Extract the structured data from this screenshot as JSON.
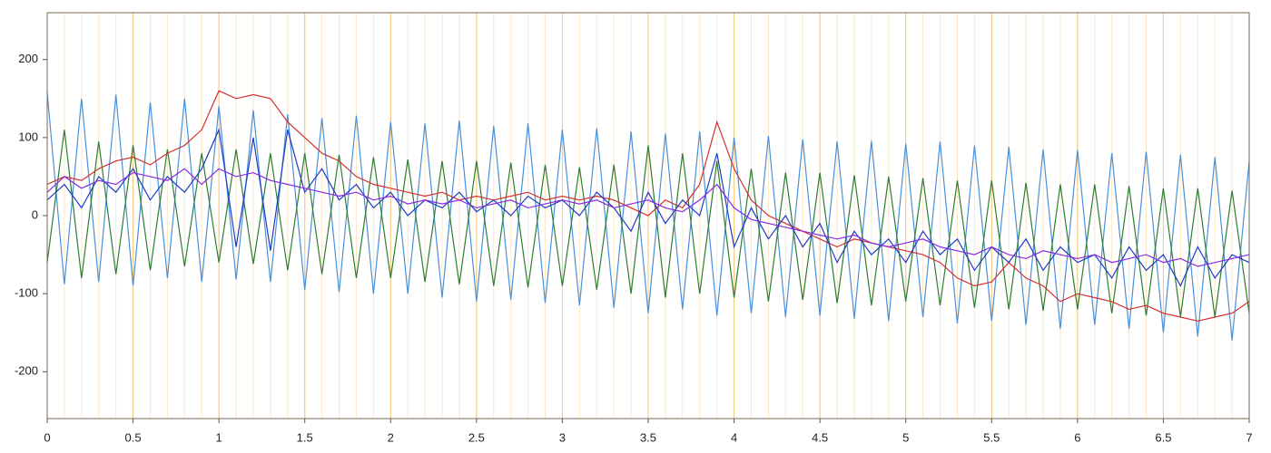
{
  "chart_data": {
    "type": "line",
    "xlim": [
      0,
      7
    ],
    "xticks": [
      0,
      0.5,
      1,
      1.5,
      2,
      2.5,
      3,
      3.5,
      4,
      4.5,
      5,
      5.5,
      6,
      6.5,
      7
    ],
    "ylim": [
      -260,
      260
    ],
    "yticks": [
      -200,
      -100,
      0,
      100,
      200
    ],
    "grid": true,
    "grid_color": "#f5c77a",
    "minor_grid_color": "#fbe8c8",
    "x": [
      0,
      0.1,
      0.2,
      0.3,
      0.4,
      0.5,
      0.6,
      0.7,
      0.8,
      0.9,
      1,
      1.1,
      1.2,
      1.3,
      1.4,
      1.5,
      1.6,
      1.7,
      1.8,
      1.9,
      2,
      2.1,
      2.2,
      2.3,
      2.4,
      2.5,
      2.6,
      2.7,
      2.8,
      2.9,
      3,
      3.1,
      3.2,
      3.3,
      3.4,
      3.5,
      3.6,
      3.7,
      3.8,
      3.9,
      4,
      4.1,
      4.2,
      4.3,
      4.4,
      4.5,
      4.6,
      4.7,
      4.8,
      4.9,
      5,
      5.1,
      5.2,
      5.3,
      5.4,
      5.5,
      5.6,
      5.7,
      5.8,
      5.9,
      6,
      6.1,
      6.2,
      6.3,
      6.4,
      6.5,
      6.6,
      6.7,
      6.8,
      6.9,
      7
    ],
    "series": [
      {
        "color": "#4a90d9",
        "values": [
          158,
          -88,
          150,
          -85,
          155,
          -90,
          145,
          -80,
          150,
          -85,
          140,
          -82,
          135,
          -85,
          130,
          -95,
          125,
          -98,
          128,
          -100,
          120,
          -100,
          118,
          -105,
          122,
          -110,
          115,
          -108,
          118,
          -112,
          110,
          -115,
          112,
          -118,
          108,
          -125,
          105,
          -120,
          108,
          -128,
          100,
          -125,
          102,
          -130,
          98,
          -128,
          95,
          -132,
          96,
          -135,
          92,
          -130,
          95,
          -138,
          90,
          -135,
          88,
          -140,
          85,
          -145,
          84,
          -140,
          80,
          -145,
          82,
          -150,
          78,
          -155,
          75,
          -160,
          70
        ]
      },
      {
        "color": "#2e7d32",
        "values": [
          -60,
          110,
          -80,
          95,
          -75,
          90,
          -70,
          85,
          -65,
          80,
          -60,
          85,
          -62,
          80,
          -70,
          80,
          -75,
          78,
          -80,
          75,
          -80,
          72,
          -85,
          70,
          -88,
          70,
          -90,
          68,
          -92,
          65,
          -90,
          62,
          -95,
          65,
          -100,
          90,
          -105,
          80,
          -100,
          70,
          -105,
          60,
          -110,
          55,
          -108,
          55,
          -112,
          52,
          -115,
          50,
          -110,
          48,
          -115,
          45,
          -118,
          45,
          -120,
          42,
          -122,
          40,
          -120,
          40,
          -125,
          38,
          -128,
          35,
          -130,
          35,
          -130,
          32,
          -125
        ]
      },
      {
        "color": "#d32f2f",
        "values": [
          40,
          50,
          45,
          60,
          70,
          75,
          65,
          80,
          90,
          110,
          160,
          150,
          155,
          150,
          120,
          100,
          80,
          70,
          50,
          40,
          35,
          30,
          25,
          30,
          20,
          25,
          20,
          25,
          30,
          20,
          25,
          20,
          25,
          20,
          10,
          0,
          20,
          10,
          40,
          120,
          60,
          20,
          0,
          -10,
          -20,
          -30,
          -40,
          -30,
          -35,
          -40,
          -45,
          -50,
          -60,
          -80,
          -90,
          -85,
          -60,
          -80,
          -90,
          -110,
          -100,
          -105,
          -110,
          -120,
          -115,
          -125,
          -130,
          -135,
          -130,
          -125,
          -110
        ]
      },
      {
        "color": "#1e3cc8",
        "values": [
          20,
          40,
          10,
          50,
          30,
          60,
          20,
          50,
          30,
          60,
          110,
          -40,
          100,
          -45,
          110,
          30,
          60,
          20,
          40,
          10,
          30,
          0,
          20,
          10,
          30,
          5,
          20,
          0,
          25,
          10,
          20,
          0,
          30,
          10,
          -20,
          30,
          -10,
          20,
          0,
          80,
          -40,
          10,
          -30,
          0,
          -40,
          -10,
          -60,
          -20,
          -50,
          -30,
          -60,
          -20,
          -50,
          -30,
          -70,
          -40,
          -60,
          -30,
          -70,
          -40,
          -60,
          -50,
          -80,
          -40,
          -70,
          -50,
          -90,
          -40,
          -80,
          -50,
          -60
        ]
      },
      {
        "color": "#8a2be2",
        "values": [
          30,
          50,
          35,
          45,
          40,
          55,
          50,
          45,
          60,
          40,
          60,
          50,
          55,
          45,
          40,
          35,
          30,
          25,
          30,
          20,
          25,
          15,
          20,
          15,
          20,
          10,
          15,
          20,
          10,
          15,
          20,
          15,
          20,
          10,
          15,
          20,
          10,
          5,
          20,
          40,
          10,
          -5,
          -10,
          -15,
          -20,
          -25,
          -30,
          -25,
          -35,
          -40,
          -35,
          -30,
          -40,
          -45,
          -50,
          -40,
          -50,
          -55,
          -45,
          -50,
          -55,
          -50,
          -60,
          -55,
          -50,
          -60,
          -55,
          -65,
          -60,
          -55,
          -50
        ]
      }
    ]
  }
}
